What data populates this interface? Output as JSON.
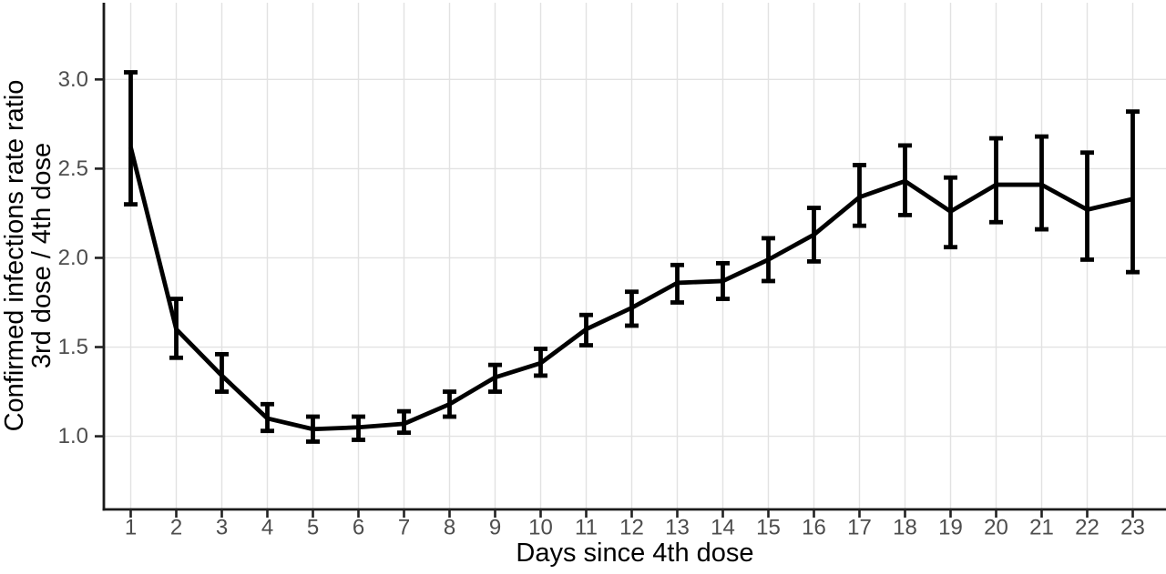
{
  "figure": {
    "x_axis_title": "Days since 4th dose",
    "y_axis_title_line1": "Confirmed infections rate ratio",
    "y_axis_title_line2": "3rd dose / 4th dose"
  },
  "chart_data": {
    "type": "line",
    "title": "",
    "xlabel": "Days since 4th dose",
    "ylabel": "Confirmed infections rate ratio, 3rd dose / 4th dose",
    "legend": "none",
    "grid": "major-only",
    "x": [
      1,
      2,
      3,
      4,
      5,
      6,
      7,
      8,
      9,
      10,
      11,
      12,
      13,
      14,
      15,
      16,
      17,
      18,
      19,
      20,
      21,
      22,
      23
    ],
    "x_tick_labels": [
      "1",
      "2",
      "3",
      "4",
      "5",
      "6",
      "7",
      "8",
      "9",
      "10",
      "11",
      "12",
      "13",
      "14",
      "15",
      "16",
      "17",
      "18",
      "19",
      "20",
      "21",
      "22",
      "23"
    ],
    "y_ticks": [
      1.0,
      1.5,
      2.0,
      2.5,
      3.0
    ],
    "y_tick_labels": [
      "1.0",
      "1.5",
      "2.0",
      "2.5",
      "3.0"
    ],
    "xlim": [
      0.41,
      23.73
    ],
    "ylim": [
      0.59,
      3.43
    ],
    "series": [
      {
        "name": "Confirmed infections rate ratio (3rd dose / 4th dose)",
        "values": [
          2.62,
          1.6,
          1.34,
          1.1,
          1.04,
          1.05,
          1.07,
          1.18,
          1.33,
          1.41,
          1.6,
          1.72,
          1.86,
          1.87,
          1.99,
          2.13,
          2.34,
          2.43,
          2.26,
          2.41,
          2.41,
          2.27,
          2.33
        ],
        "ci_low": [
          2.3,
          1.44,
          1.25,
          1.03,
          0.97,
          0.98,
          1.02,
          1.11,
          1.25,
          1.34,
          1.51,
          1.62,
          1.75,
          1.77,
          1.87,
          1.98,
          2.18,
          2.24,
          2.06,
          2.2,
          2.16,
          1.99,
          1.92
        ],
        "ci_high": [
          3.04,
          1.77,
          1.46,
          1.18,
          1.11,
          1.11,
          1.14,
          1.25,
          1.4,
          1.49,
          1.68,
          1.81,
          1.96,
          1.97,
          2.11,
          2.28,
          2.52,
          2.63,
          2.45,
          2.67,
          2.68,
          2.59,
          2.82
        ]
      }
    ],
    "colors": {
      "line": "#000000",
      "error_bar": "#000000",
      "gridline": "#e2e2e2",
      "axis_line": "#1a1a1a",
      "tick_mark": "#222222",
      "tick_label": "#4d4d4d",
      "axis_title": "#000000",
      "background": "#ffffff"
    }
  }
}
